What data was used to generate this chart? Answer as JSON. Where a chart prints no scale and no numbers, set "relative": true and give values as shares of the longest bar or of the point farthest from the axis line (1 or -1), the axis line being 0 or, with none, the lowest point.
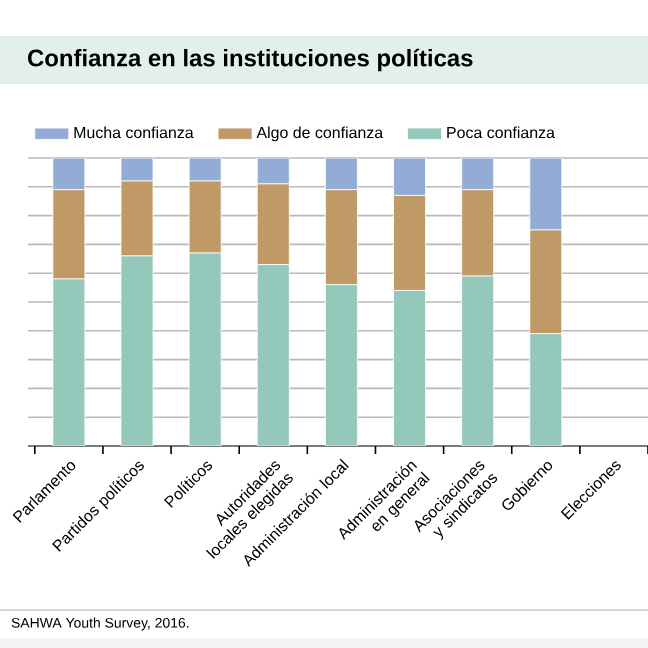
{
  "chart_data": {
    "type": "bar",
    "title": "Confianza en las instituciones políticas",
    "categories": [
      "Parlamento",
      "Partidos políticos",
      "Políticos",
      "Autoridades locales elegidas",
      "Administración local",
      "Administración en general",
      "Asociaciones y sindicatos",
      "Gobierno",
      "Elecciones"
    ],
    "series": [
      {
        "name": "Poca confianza",
        "color": "#93c8ba",
        "values": [
          0.58,
          0.66,
          0.67,
          0.63,
          0.56,
          0.54,
          0.59,
          0.39,
          null
        ]
      },
      {
        "name": "Algo de confianza",
        "color": "#bf9a66",
        "values": [
          0.31,
          0.26,
          0.25,
          0.28,
          0.33,
          0.33,
          0.3,
          0.36,
          null
        ]
      },
      {
        "name": "Mucha confianza",
        "color": "#93acd6",
        "values": [
          0.11,
          0.08,
          0.08,
          0.09,
          0.11,
          0.13,
          0.11,
          0.25,
          null
        ]
      }
    ],
    "stacked": true,
    "relative": true,
    "grid": "y",
    "legend": "top",
    "annotations": [
      "SAHWA Youth Survey, 2016."
    ]
  }
}
